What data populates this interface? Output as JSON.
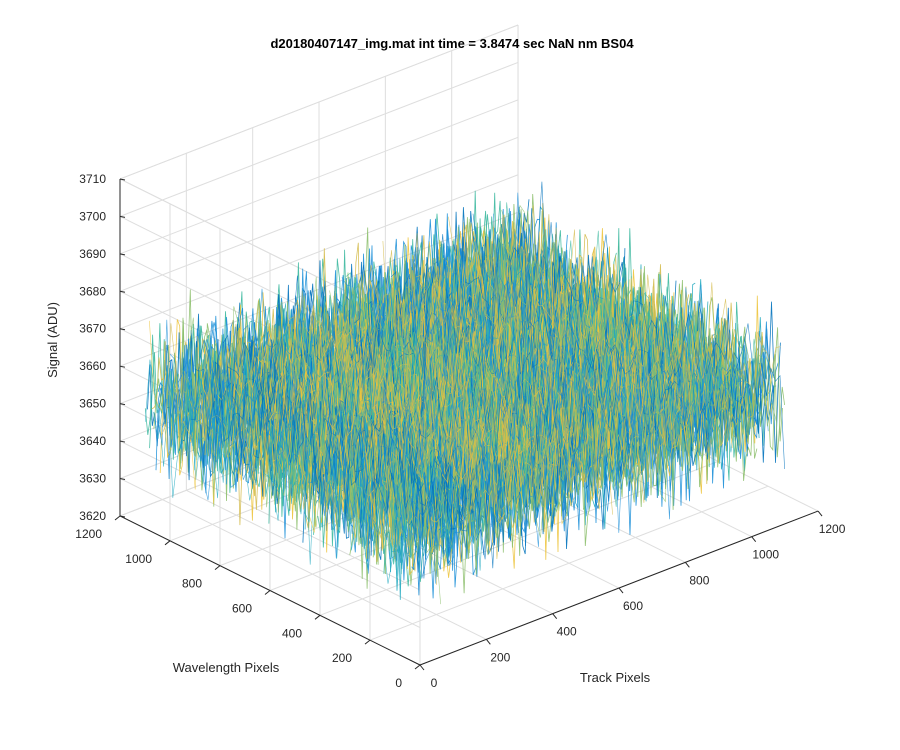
{
  "chart_data": {
    "type": "surface",
    "title": "d20180407147_img.mat int time = 3.8474 sec  NaN nm BS04",
    "xlabel": "Track Pixels",
    "ylabel": "Wavelength Pixels",
    "zlabel": "Signal (ADU)",
    "xlim": [
      0,
      1200
    ],
    "ylim": [
      0,
      1200
    ],
    "zlim": [
      3620,
      3710
    ],
    "xticks": [
      "0",
      "200",
      "400",
      "600",
      "800",
      "1000",
      "1200"
    ],
    "yticks": [
      "0",
      "200",
      "400",
      "600",
      "800",
      "1000",
      "1200"
    ],
    "zticks": [
      "3620",
      "3630",
      "3640",
      "3650",
      "3660",
      "3670",
      "3680",
      "3690",
      "3700",
      "3710"
    ],
    "data_extent": {
      "x": [
        1,
        1100
      ],
      "y": [
        1,
        1100
      ]
    },
    "signal": {
      "mean": 3655,
      "min": 3625,
      "max": 3685
    },
    "colormap": "parula",
    "colors": [
      "#0072BD",
      "#1B8FD8",
      "#23AAC0",
      "#3BB89E",
      "#8CBF6B",
      "#D4BB4C",
      "#EDC43C"
    ],
    "grid": true
  }
}
